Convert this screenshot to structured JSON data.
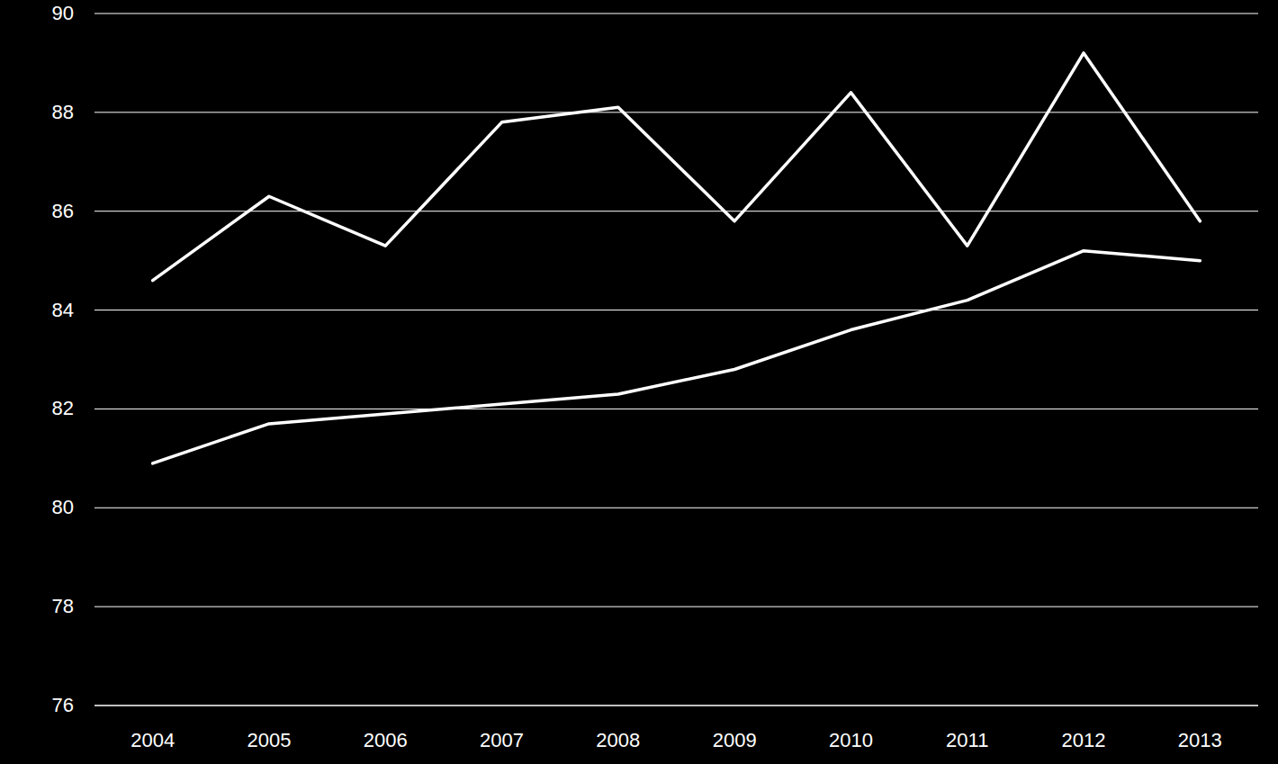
{
  "chart_data": {
    "type": "line",
    "categories": [
      "2004",
      "2005",
      "2006",
      "2007",
      "2008",
      "2009",
      "2010",
      "2011",
      "2012",
      "2013"
    ],
    "series": [
      {
        "color": "#ffffff",
        "values": [
          84.6,
          86.3,
          85.3,
          87.8,
          88.1,
          85.8,
          88.4,
          85.3,
          89.2,
          85.8
        ]
      },
      {
        "color": "#ffffff",
        "values": [
          80.9,
          81.7,
          81.9,
          82.1,
          82.3,
          82.8,
          83.6,
          84.2,
          85.2,
          85.0
        ]
      }
    ],
    "ylim": [
      76,
      90
    ],
    "yticks": [
      76,
      78,
      80,
      82,
      84,
      86,
      88,
      90
    ],
    "grid": true
  }
}
